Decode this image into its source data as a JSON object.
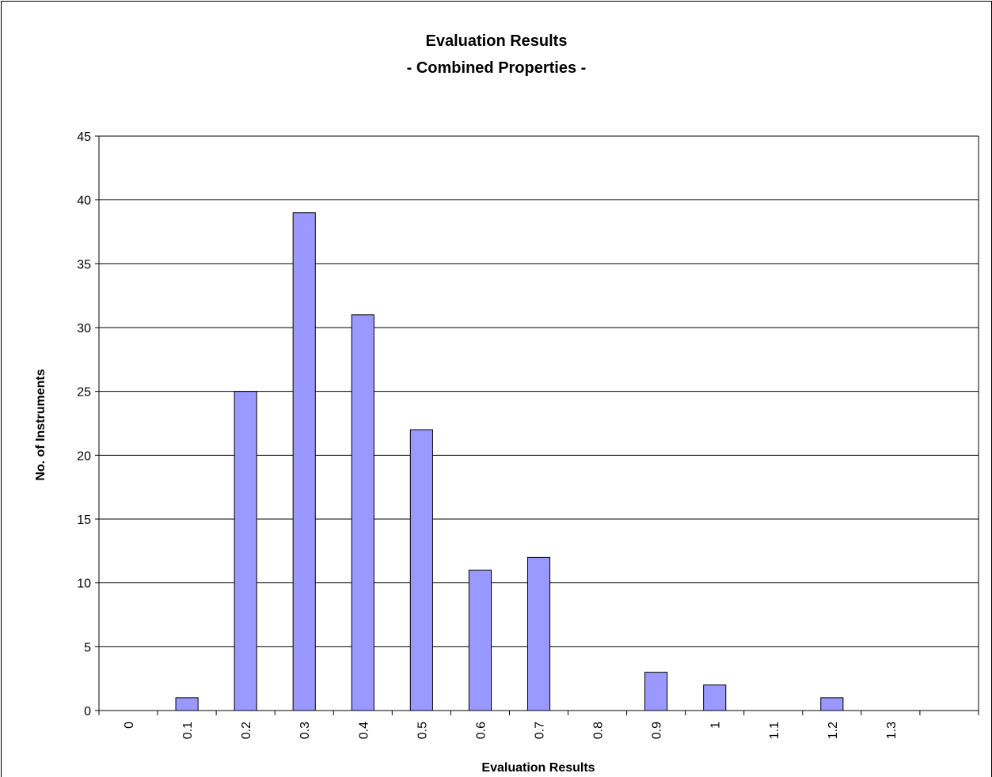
{
  "chart_data": {
    "type": "bar",
    "title": "Evaluation Results",
    "subtitle": "- Combined Properties -",
    "xlabel": "Evaluation Results",
    "ylabel": "No. of Instruments",
    "categories": [
      "0",
      "0.1",
      "0.2",
      "0.3",
      "0.4",
      "0.5",
      "0.6",
      "0.7",
      "0.8",
      "0.9",
      "1",
      "1.1",
      "1.2",
      "1.3",
      ""
    ],
    "values": [
      0,
      1,
      25,
      39,
      31,
      22,
      11,
      12,
      0,
      3,
      2,
      0,
      1,
      0,
      0
    ],
    "ylim": [
      0,
      45
    ],
    "yticks": [
      0,
      5,
      10,
      15,
      20,
      25,
      30,
      35,
      40,
      45
    ],
    "grid": "horizontal",
    "legend": "none",
    "colors": {
      "bar_fill": "#9999ff",
      "bar_stroke": "#000000",
      "grid": "#000000",
      "background": "#ffffff"
    }
  }
}
